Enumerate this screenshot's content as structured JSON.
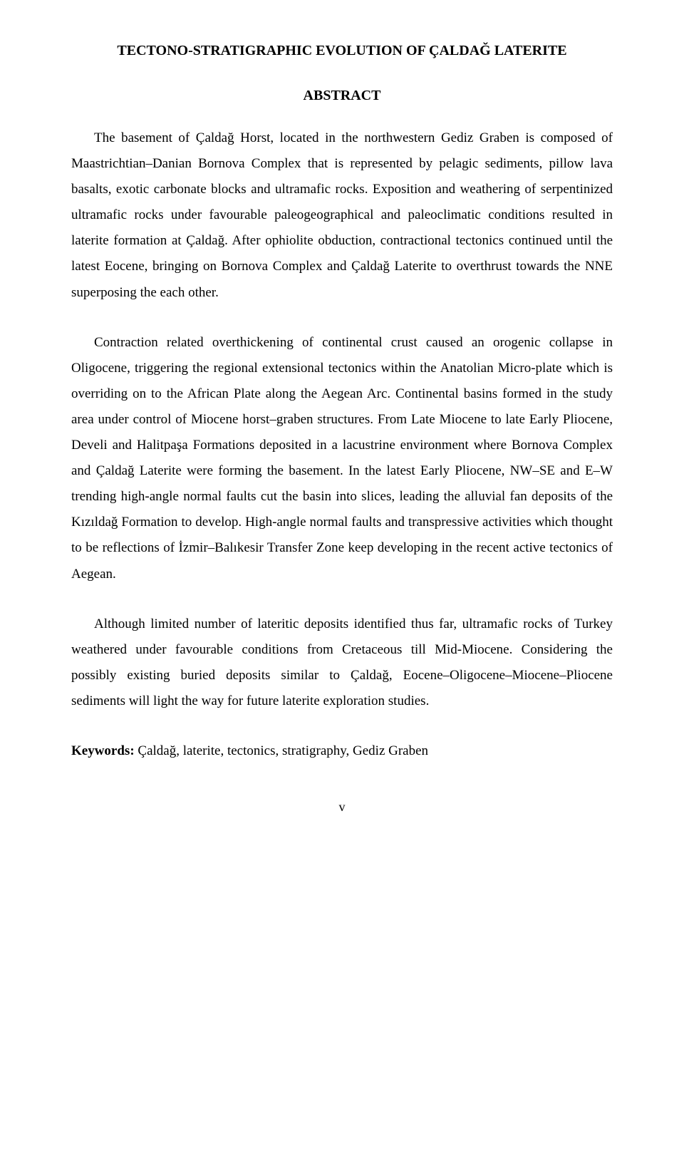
{
  "title": "TECTONO-STRATIGRAPHIC EVOLUTION OF ÇALDAĞ LATERITE",
  "abstract_heading": "ABSTRACT",
  "paragraphs": {
    "p1": "The basement of Çaldağ Horst, located in the northwestern Gediz Graben is composed of Maastrichtian–Danian Bornova Complex that is represented by pelagic sediments, pillow lava basalts, exotic carbonate blocks and ultramafic rocks. Exposition and weathering of serpentinized ultramafic rocks under favourable paleogeographical and paleoclimatic conditions resulted in laterite formation at Çaldağ. After ophiolite obduction, contractional tectonics continued until the latest Eocene, bringing on Bornova Complex and Çaldağ Laterite to overthrust towards the NNE superposing the each other.",
    "p2": "Contraction related overthickening of continental crust caused an orogenic collapse in Oligocene, triggering the regional extensional tectonics within the Anatolian Micro-plate which is overriding on to the African Plate along the Aegean Arc. Continental basins formed in the study area under control of Miocene horst–graben structures. From Late Miocene to late Early Pliocene, Develi and Halitpaşa Formations deposited in a lacustrine environment where Bornova Complex and Çaldağ Laterite were forming the basement. In the latest Early Pliocene, NW–SE and E–W trending high-angle normal faults cut the basin into slices, leading the alluvial fan deposits of the Kızıldağ Formation to develop. High-angle normal faults and transpressive activities which thought to be reflections of İzmir–Balıkesir Transfer Zone keep developing in the recent active tectonics of Aegean.",
    "p3": "Although limited number of lateritic deposits identified thus far, ultramafic rocks of Turkey weathered under favourable conditions from Cretaceous till Mid-Miocene. Considering the possibly existing buried deposits similar to Çaldağ, Eocene–Oligocene–Miocene–Pliocene sediments will light the way for future laterite exploration studies."
  },
  "keywords": {
    "label": "Keywords:",
    "text": " Çaldağ, laterite, tectonics, stratigraphy, Gediz Graben"
  },
  "page_number": "v"
}
